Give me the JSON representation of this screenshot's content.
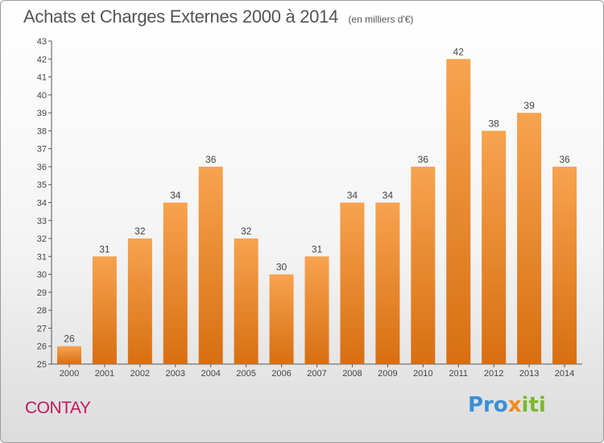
{
  "header": {
    "title": "Achats et Charges Externes 2000 à 2014",
    "unit": "(en milliers d'€)"
  },
  "footer": {
    "commune": "CONTAY",
    "logo_text": "Proxiti"
  },
  "colors": {
    "bar_top": "#f7a34f",
    "bar_bottom": "#d86f12",
    "commune_text": "#c2185b"
  },
  "chart_data": {
    "type": "bar",
    "title": "Achats et Charges Externes 2000 à 2014",
    "subtitle": "(en milliers d'€)",
    "categories": [
      "2000",
      "2001",
      "2002",
      "2003",
      "2004",
      "2005",
      "2006",
      "2007",
      "2008",
      "2009",
      "2010",
      "2011",
      "2012",
      "2013",
      "2014"
    ],
    "values": [
      26,
      31,
      32,
      34,
      36,
      32,
      30,
      31,
      34,
      34,
      36,
      42,
      38,
      39,
      36
    ],
    "ylim": [
      25,
      43
    ],
    "yticks": [
      25,
      26,
      27,
      28,
      29,
      30,
      31,
      32,
      33,
      34,
      35,
      36,
      37,
      38,
      39,
      40,
      41,
      42,
      43
    ],
    "grid": false,
    "data_labels": true
  }
}
